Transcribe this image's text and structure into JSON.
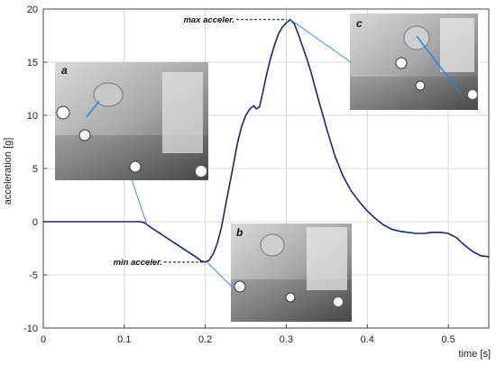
{
  "chart_data": {
    "type": "line",
    "xlabel": "time [s]",
    "ylabel": "acceleration [g]",
    "xlim": [
      0,
      0.55
    ],
    "ylim": [
      -10,
      20
    ],
    "xticks": [
      0,
      0.1,
      0.2,
      0.3,
      0.4,
      0.5
    ],
    "xtick_labels": [
      "0",
      "0.1",
      "0.2",
      "0.3",
      "0.4",
      "0.5"
    ],
    "yticks": [
      -10,
      -5,
      0,
      5,
      10,
      15,
      20
    ],
    "ytick_labels": [
      "-10",
      "-5",
      "0",
      "5",
      "10",
      "15",
      "20"
    ],
    "grid": true,
    "series": [
      {
        "color": "#1a237e",
        "x": [
          0,
          0.05,
          0.1,
          0.12,
          0.125,
          0.13,
          0.14,
          0.15,
          0.16,
          0.17,
          0.18,
          0.19,
          0.195,
          0.2,
          0.205,
          0.21,
          0.215,
          0.22,
          0.225,
          0.23,
          0.235,
          0.24,
          0.245,
          0.25,
          0.255,
          0.26,
          0.263,
          0.267,
          0.27,
          0.275,
          0.28,
          0.285,
          0.29,
          0.295,
          0.3,
          0.305,
          0.31,
          0.315,
          0.32,
          0.325,
          0.33,
          0.335,
          0.34,
          0.35,
          0.36,
          0.37,
          0.38,
          0.39,
          0.4,
          0.41,
          0.42,
          0.43,
          0.44,
          0.45,
          0.46,
          0.47,
          0.48,
          0.49,
          0.5,
          0.51,
          0.52,
          0.53,
          0.54,
          0.55
        ],
        "y": [
          0,
          0,
          0,
          0,
          -0.1,
          -0.4,
          -0.9,
          -1.4,
          -1.9,
          -2.4,
          -2.9,
          -3.4,
          -3.7,
          -3.8,
          -3.6,
          -3.0,
          -2.0,
          -0.5,
          1.5,
          3.5,
          5.5,
          7.5,
          9.0,
          10.0,
          10.6,
          10.9,
          10.6,
          10.8,
          11.8,
          13.6,
          15.2,
          16.5,
          17.6,
          18.3,
          18.7,
          19.0,
          18.6,
          17.6,
          16.5,
          15.4,
          14.2,
          12.8,
          11.4,
          8.7,
          6.2,
          4.3,
          2.9,
          1.9,
          1.0,
          0.3,
          -0.3,
          -0.7,
          -0.9,
          -1.0,
          -1.1,
          -1.1,
          -1.0,
          -1.0,
          -1.1,
          -1.5,
          -2.2,
          -2.8,
          -3.2,
          -3.3
        ]
      }
    ],
    "annotations": [
      {
        "text": "max acceler.",
        "x": 0.303,
        "y": 19.0
      },
      {
        "text": "min acceler.",
        "x": 0.2,
        "y": -3.8
      }
    ],
    "insets": [
      {
        "label": "a",
        "points_to": {
          "x": 0.128,
          "y": -0.3
        }
      },
      {
        "label": "b",
        "points_to": {
          "x": 0.2,
          "y": -3.8
        }
      },
      {
        "label": "c",
        "points_to": {
          "x": 0.303,
          "y": 19.0
        }
      }
    ]
  }
}
